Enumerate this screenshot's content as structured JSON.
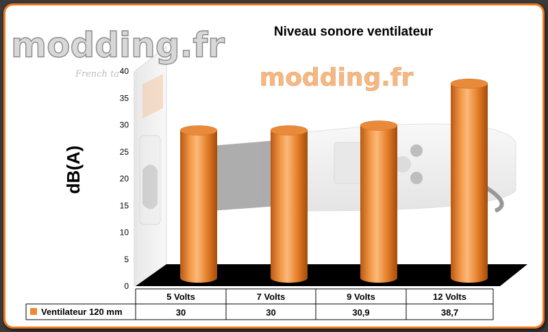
{
  "watermark": {
    "logo_text": "modding.fr",
    "tagline": "French ta",
    "center_logo_text": "modding.fr"
  },
  "chart_data": {
    "type": "bar",
    "title": "Niveau sonore ventilateur",
    "ylabel": "dB(A)",
    "xlabel": "",
    "categories": [
      "5 Volts",
      "7 Volts",
      "9 Volts",
      "12 Volts"
    ],
    "series": [
      {
        "name": "Ventilateur 120 mm",
        "values": [
          30,
          30,
          30.9,
          38.7
        ],
        "color": "#f08a30"
      }
    ],
    "value_labels": [
      "30",
      "30",
      "30,9",
      "38,7"
    ],
    "ylim": [
      0,
      40
    ],
    "yticks": [
      0,
      5,
      10,
      15,
      20,
      25,
      30,
      35,
      40
    ],
    "grid": false,
    "legend": "data-table",
    "style": "3d-cylinder"
  }
}
